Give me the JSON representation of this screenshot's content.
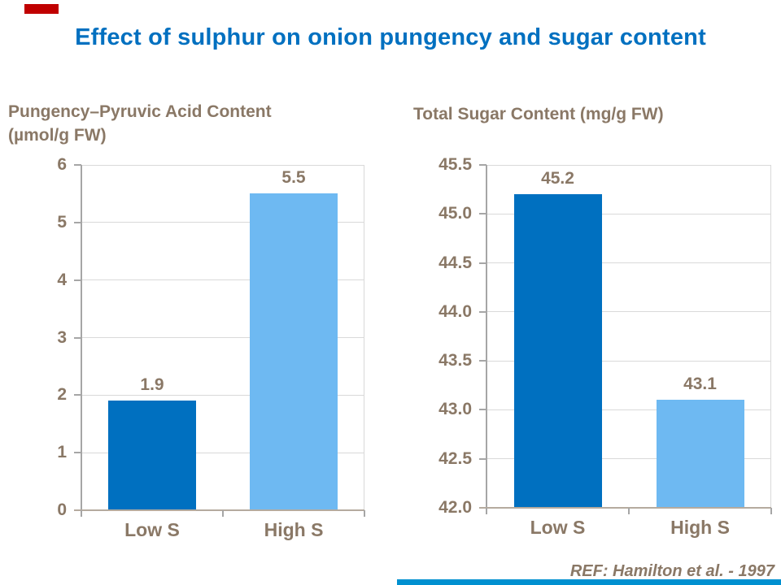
{
  "slide": {
    "title": "Effect of sulphur on onion pungency and sugar content",
    "reference": "REF: Hamilton et al. - 1997"
  },
  "colors": {
    "title_blue": "#0070C0",
    "text_brown": "#8A7866",
    "bar_dark_blue": "#0070C0",
    "bar_light_blue": "#6EB9F2",
    "gridline": "#D9D9D9",
    "axis_gray": "#A6A6A6",
    "baseline_tan": "#B5AB9F",
    "accent_red": "#C00000",
    "accent_blue_bar": "#0090D0"
  },
  "chart_data": [
    {
      "type": "bar",
      "title": "Pungency–Pyruvic Acid Content (µmol/g FW)",
      "title_lines": [
        "Pungency–Pyruvic Acid Content",
        "(µmol/g FW)"
      ],
      "categories": [
        "Low S",
        "High S"
      ],
      "values": [
        1.9,
        5.5
      ],
      "data_labels": [
        "1.9",
        "5.5"
      ],
      "bar_colors": [
        "#0070C0",
        "#6EB9F2"
      ],
      "ylabel": "µmol/g FW",
      "ylim": [
        0,
        6
      ],
      "ytick_step": 1,
      "ytick_labels": [
        "0",
        "1",
        "2",
        "3",
        "4",
        "5",
        "6"
      ],
      "grid": true,
      "legend": "none"
    },
    {
      "type": "bar",
      "title": "Total Sugar Content (mg/g FW)",
      "title_lines": [
        "Total Sugar Content (mg/g FW)"
      ],
      "categories": [
        "Low S",
        "High S"
      ],
      "values": [
        45.2,
        43.1
      ],
      "data_labels": [
        "45.2",
        "43.1"
      ],
      "bar_colors": [
        "#0070C0",
        "#6EB9F2"
      ],
      "ylabel": "mg/g FW",
      "ylim": [
        42.0,
        45.5
      ],
      "ytick_step": 0.5,
      "ytick_labels": [
        "42.0",
        "42.5",
        "43.0",
        "43.5",
        "44.0",
        "44.5",
        "45.0",
        "45.5"
      ],
      "grid": true,
      "legend": "none"
    }
  ]
}
